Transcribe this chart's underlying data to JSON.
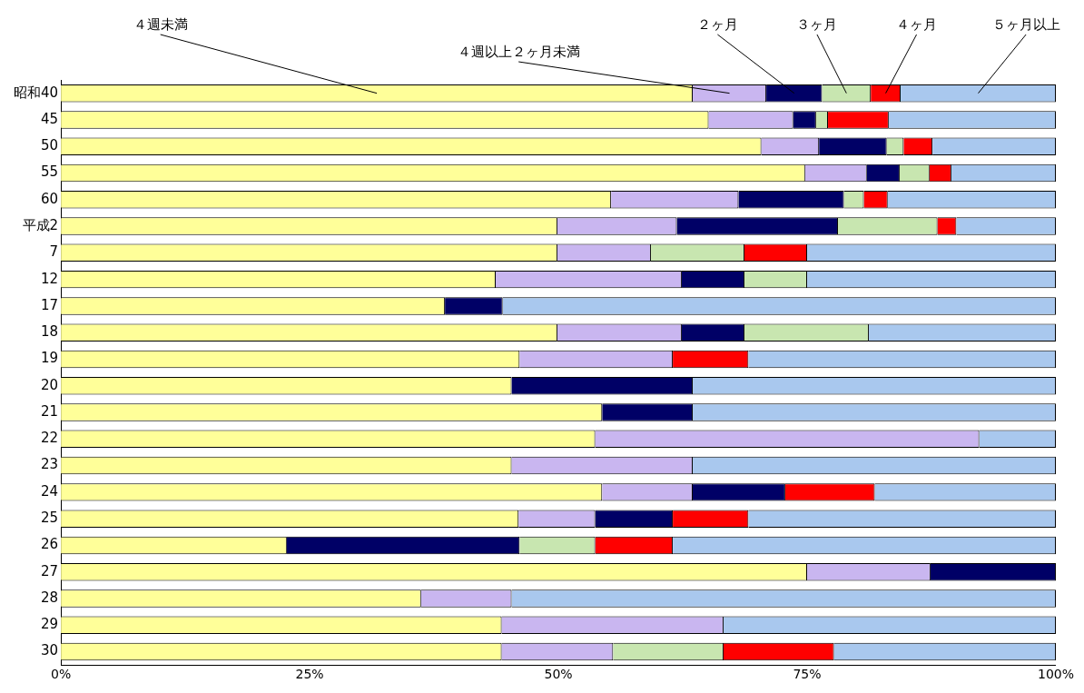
{
  "chart_data": {
    "type": "bar",
    "orientation": "horizontal",
    "stacked": true,
    "categories": [
      "昭和40",
      "45",
      "50",
      "55",
      "60",
      "平成2",
      "7",
      "12",
      "17",
      "18",
      "19",
      "20",
      "21",
      "22",
      "23",
      "24",
      "25",
      "26",
      "27",
      "28",
      "29",
      "30"
    ],
    "series": [
      {
        "name": "４週未満",
        "color": "#ffff99",
        "values": [
          63.5,
          65.1,
          70.4,
          74.8,
          55.3,
          49.9,
          49.9,
          43.7,
          38.6,
          49.9,
          46.1,
          45.3,
          54.4,
          53.7,
          45.3,
          54.4,
          46.0,
          22.7,
          75.0,
          36.2,
          44.3,
          44.3
        ]
      },
      {
        "name": "４週以上２ヶ月未満",
        "color": "#c9b6f0",
        "values": [
          7.4,
          8.5,
          5.8,
          6.2,
          12.8,
          12.0,
          9.4,
          18.7,
          0,
          12.5,
          15.4,
          0,
          0,
          38.6,
          18.2,
          9.1,
          7.7,
          0,
          12.4,
          9.1,
          22.3,
          11.2
        ]
      },
      {
        "name": "２ヶ月",
        "color": "#000066",
        "values": [
          5.6,
          2.3,
          6.8,
          3.3,
          10.6,
          16.2,
          0,
          6.3,
          5.8,
          6.3,
          0,
          18.2,
          9.1,
          0,
          0,
          9.3,
          7.8,
          23.4,
          12.6,
          0,
          0,
          0
        ]
      },
      {
        "name": "３ヶ月",
        "color": "#c8e6b0",
        "values": [
          4.9,
          1.2,
          1.7,
          3.0,
          2.0,
          10.0,
          9.4,
          6.3,
          0,
          12.5,
          0,
          0,
          0,
          0,
          0,
          0,
          0,
          7.6,
          0,
          0,
          0,
          11.1
        ]
      },
      {
        "name": "４ヶ月",
        "color": "#ff0000",
        "values": [
          3.0,
          6.1,
          2.9,
          2.2,
          2.4,
          1.9,
          6.3,
          0,
          0,
          0,
          7.6,
          0,
          0,
          0,
          0,
          9.0,
          7.6,
          7.8,
          0,
          0,
          0,
          11.1
        ]
      },
      {
        "name": "５ヶ月以上",
        "color": "#a9c8ee",
        "values": [
          15.6,
          16.8,
          12.4,
          10.5,
          16.9,
          10.0,
          25.0,
          25.0,
          55.6,
          18.8,
          30.9,
          36.5,
          36.5,
          7.7,
          36.5,
          18.2,
          30.9,
          38.5,
          0,
          54.7,
          33.4,
          22.3
        ]
      }
    ],
    "xlim": [
      0,
      100
    ],
    "xticks": [
      {
        "value": 0,
        "label": "0%"
      },
      {
        "value": 25,
        "label": "25%"
      },
      {
        "value": 50,
        "label": "50%"
      },
      {
        "value": 75,
        "label": "75%"
      },
      {
        "value": 100,
        "label": "100%"
      }
    ],
    "grid": false,
    "legend": false
  }
}
